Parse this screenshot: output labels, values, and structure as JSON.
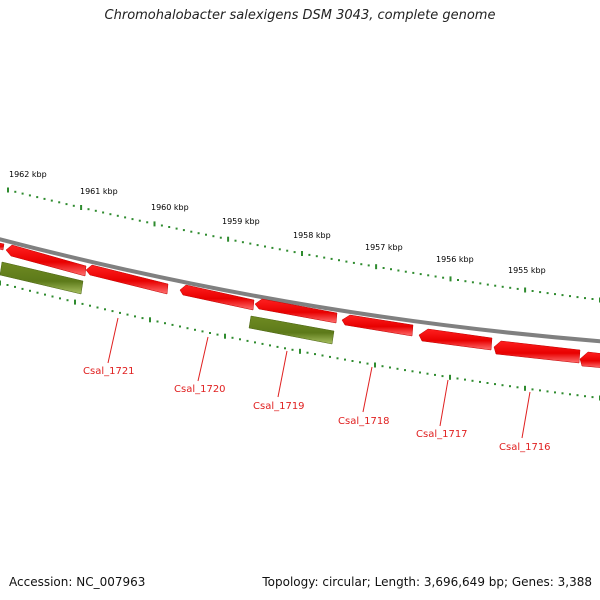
{
  "title": "Chromohalobacter salexigens DSM 3043, complete genome",
  "footer": {
    "accession": "Accession: NC_007963",
    "summary": "Topology: circular; Length: 3,696,649 bp; Genes: 3,388"
  },
  "colors": {
    "backbone": "#808080",
    "gene_red": "#e80000",
    "gene_green": "#6b8e23",
    "ticks": "#2e8b2e",
    "label": "#e02020"
  },
  "scale_labels": [
    {
      "kbp": 1962,
      "text": "1962 kbp"
    },
    {
      "kbp": 1961,
      "text": "1961 kbp"
    },
    {
      "kbp": 1960,
      "text": "1960 kbp"
    },
    {
      "kbp": 1959,
      "text": "1959 kbp"
    },
    {
      "kbp": 1958,
      "text": "1958 kbp"
    },
    {
      "kbp": 1957,
      "text": "1957 kbp"
    },
    {
      "kbp": 1956,
      "text": "1956 kbp"
    },
    {
      "kbp": 1955,
      "text": "1955 kbp"
    }
  ],
  "gene_labels": [
    {
      "name": "Csal_1721"
    },
    {
      "name": "Csal_1720"
    },
    {
      "name": "Csal_1719"
    },
    {
      "name": "Csal_1718"
    },
    {
      "name": "Csal_1717"
    },
    {
      "name": "Csal_1716"
    }
  ]
}
